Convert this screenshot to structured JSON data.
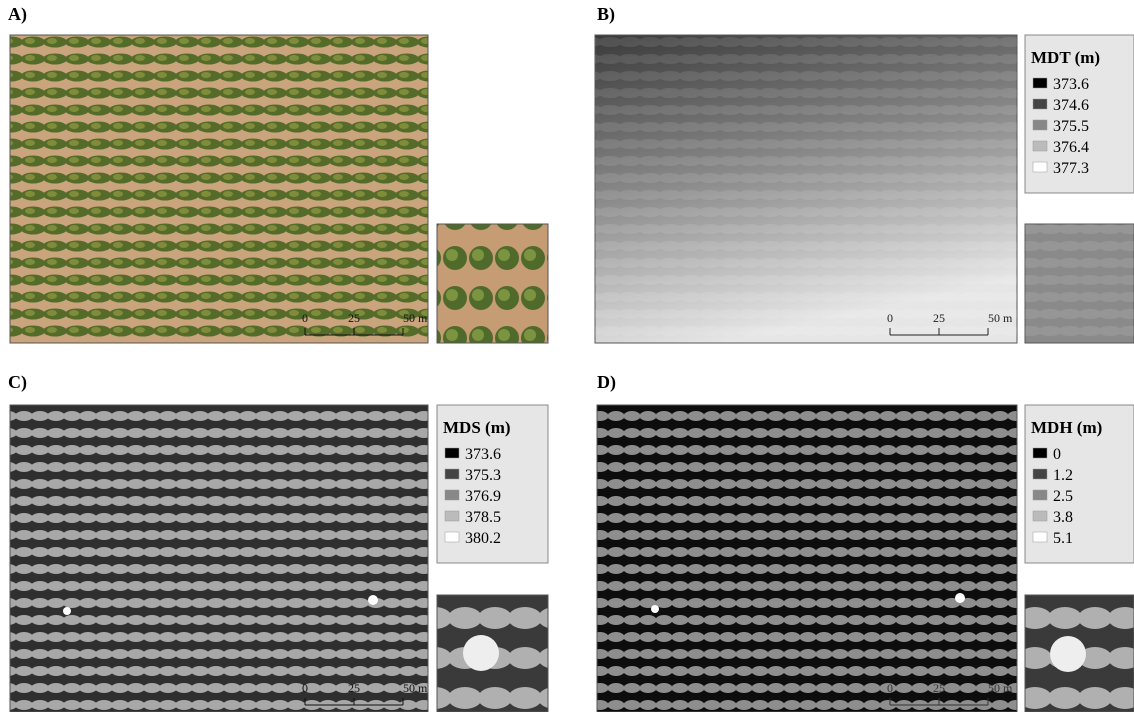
{
  "panels": [
    {
      "label": "A)",
      "scale_bar": [
        "0",
        "25",
        "50 m"
      ]
    },
    {
      "label": "B)",
      "legend": {
        "title": "MDT (m)",
        "entries": [
          "373.6",
          "374.6",
          "375.5",
          "376.4",
          "377.3"
        ]
      },
      "scale_bar": [
        "0",
        "25",
        "50 m"
      ]
    },
    {
      "label": "C)",
      "legend": {
        "title": "MDS (m)",
        "entries": [
          "373.6",
          "375.3",
          "376.9",
          "378.5",
          "380.2"
        ]
      },
      "scale_bar": [
        "0",
        "25",
        "50 m"
      ]
    },
    {
      "label": "D)",
      "legend": {
        "title": "MDH (m)",
        "entries": [
          "0",
          "1.2",
          "2.5",
          "3.8",
          "5.1"
        ]
      },
      "scale_bar": [
        "0",
        "25",
        "50 m"
      ]
    }
  ]
}
